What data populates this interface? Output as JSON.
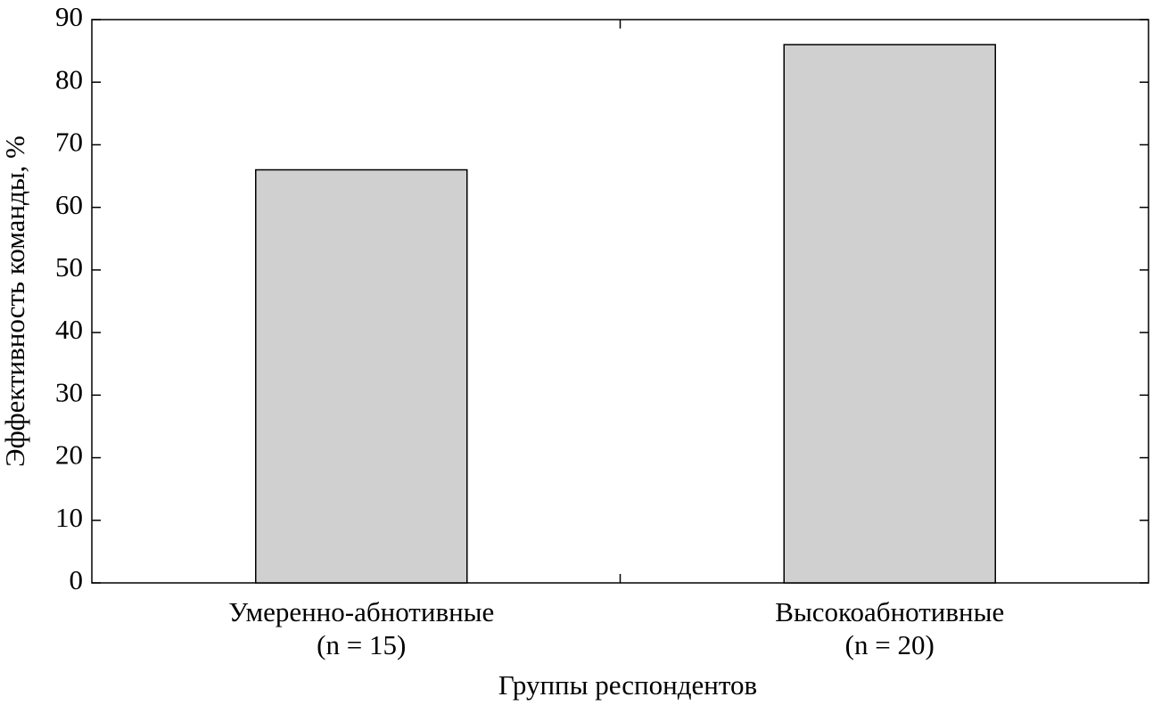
{
  "chart_data": {
    "type": "bar",
    "categories": [
      "Умеренно-абнотивные",
      "Высокоабнотивные"
    ],
    "category_sublabels": [
      "(n = 15)",
      "(n = 20)"
    ],
    "values": [
      66,
      86
    ],
    "color": "#d0d0d0",
    "x_label": "Группы респондентов",
    "y_label": "Эффективность команды, %",
    "ylim": [
      0,
      90
    ],
    "yticks": [
      0,
      10,
      20,
      30,
      40,
      50,
      60,
      70,
      80,
      90
    ],
    "grid": false
  }
}
